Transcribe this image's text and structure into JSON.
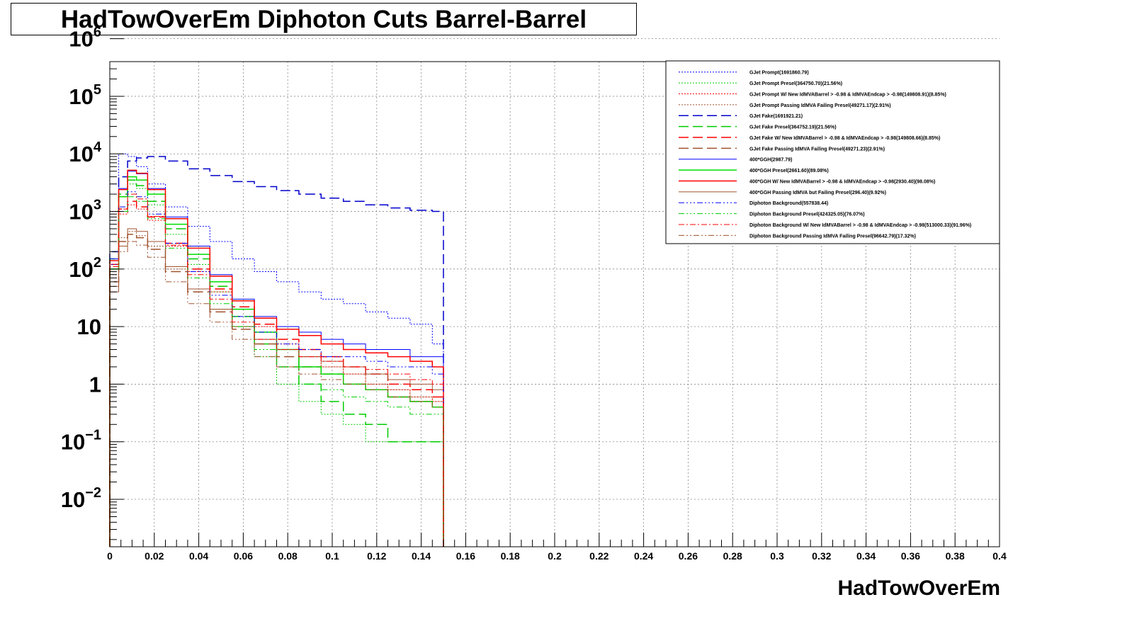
{
  "chart_data": {
    "type": "line",
    "title": "HadTowOverEm Diphoton Cuts Barrel-Barrel",
    "xlabel": "HadTowOverEm",
    "ylabel": "",
    "xlim": [
      0,
      0.4
    ],
    "ylim": [
      0.0015,
      400000
    ],
    "yscale": "log",
    "grid": true,
    "legend_position": "top-right",
    "x_ticks": [
      "0",
      "0.02",
      "0.04",
      "0.06",
      "0.08",
      "0.1",
      "0.12",
      "0.14",
      "0.16",
      "0.18",
      "0.2",
      "0.22",
      "0.24",
      "0.26",
      "0.28",
      "0.3",
      "0.32",
      "0.34",
      "0.36",
      "0.38",
      "0.4"
    ],
    "y_ticks": [
      {
        "value": 0.01,
        "base": "10",
        "exp": "−2"
      },
      {
        "value": 0.1,
        "base": "10",
        "exp": "−1"
      },
      {
        "value": 1,
        "base": "1",
        "exp": ""
      },
      {
        "value": 10,
        "base": "10",
        "exp": ""
      },
      {
        "value": 100,
        "base": "10",
        "exp": "2"
      },
      {
        "value": 1000,
        "base": "10",
        "exp": "3"
      },
      {
        "value": 10000,
        "base": "10",
        "exp": "4"
      },
      {
        "value": 100000,
        "base": "10",
        "exp": "5"
      },
      {
        "value": 1000000,
        "base": "10",
        "exp": "6"
      }
    ],
    "x": [
      0.002,
      0.006,
      0.01,
      0.014,
      0.02,
      0.03,
      0.04,
      0.05,
      0.06,
      0.07,
      0.08,
      0.09,
      0.1,
      0.11,
      0.12,
      0.13,
      0.14,
      0.15
    ],
    "series": [
      {
        "name": "GJet Prompt(1691860.79)",
        "color": "#0000ff",
        "dash": "2,2",
        "width": 1,
        "values": [
          3000,
          10000,
          9000,
          6000,
          3000,
          1200,
          550,
          300,
          150,
          90,
          60,
          40,
          30,
          25,
          18,
          14,
          11,
          5
        ]
      },
      {
        "name": "GJet Prompt Presel(364750.70)(21.56%)",
        "color": "#00cc00",
        "dash": "2,2",
        "width": 1,
        "values": [
          200,
          1800,
          3000,
          2500,
          1300,
          400,
          120,
          40,
          10,
          3,
          1,
          0.5,
          0.3,
          0.2,
          0.1,
          0.1,
          0.1,
          0.1
        ]
      },
      {
        "name": "GJet Prompt W/ New IdMVABarrel > -0.98 & IdMVAEndcap > -0.98(149808.91)(8.85%)",
        "color": "#ff0000",
        "dash": "2,2",
        "width": 1,
        "values": [
          150,
          900,
          1300,
          1100,
          700,
          250,
          90,
          40,
          20,
          10,
          5,
          3,
          2,
          1.5,
          1,
          0.8,
          0.6,
          0.5
        ]
      },
      {
        "name": "GJet Prompt Passing IdMVA Failing Presel(49271.17)(2.91%)",
        "color": "#a0522d",
        "dash": "2,2",
        "width": 1,
        "values": [
          80,
          350,
          450,
          380,
          250,
          100,
          45,
          20,
          10,
          6,
          4,
          3,
          2,
          1.5,
          1,
          0.8,
          0.6,
          0.5
        ]
      },
      {
        "name": "GJet Fake(1691921.21)",
        "color": "#0000cc",
        "dash": "14,6",
        "width": 1.5,
        "values": [
          200,
          4000,
          7500,
          8500,
          9000,
          7500,
          5500,
          4200,
          3300,
          2700,
          2300,
          2000,
          1700,
          1500,
          1300,
          1150,
          1050,
          1000
        ]
      },
      {
        "name": "GJet Fake Presel(364752.19)(21.56%)",
        "color": "#00cc00",
        "dash": "14,6",
        "width": 1.5,
        "values": [
          150,
          2000,
          3500,
          2800,
          1500,
          500,
          150,
          50,
          15,
          5,
          2,
          1,
          0.5,
          0.3,
          0.2,
          0.1,
          0.1,
          0.1
        ]
      },
      {
        "name": "GJet Fake W/ New IdMVABarrel > -0.98 & IdMVAEndcap > -0.98(149808.66)(8.85%)",
        "color": "#ff0000",
        "dash": "14,6",
        "width": 1.5,
        "values": [
          120,
          1100,
          1500,
          1200,
          800,
          280,
          100,
          45,
          22,
          11,
          6,
          4,
          3,
          2,
          1.5,
          1,
          0.8,
          0.6
        ]
      },
      {
        "name": "GJet Fake Passing IdMVA Failing Presel(49271.23)(2.91%)",
        "color": "#a0522d",
        "dash": "14,6",
        "width": 1.5,
        "values": [
          60,
          300,
          400,
          350,
          220,
          90,
          40,
          18,
          9,
          5,
          3,
          2,
          1.5,
          1,
          0.8,
          0.6,
          0.5,
          0.4
        ]
      },
      {
        "name": "400*GGH(2987.79)",
        "color": "#0000ff",
        "dash": "",
        "width": 1,
        "values": [
          150,
          2500,
          5000,
          4500,
          2500,
          800,
          250,
          80,
          30,
          15,
          10,
          8,
          6,
          5,
          4,
          4,
          3,
          3
        ]
      },
      {
        "name": "400*GGH Presel(2661.60)(89.08%)",
        "color": "#00dd00",
        "dash": "",
        "width": 1.5,
        "values": [
          100,
          1800,
          4000,
          3500,
          2000,
          600,
          180,
          60,
          20,
          8,
          4,
          2,
          1.5,
          1,
          0.8,
          0.6,
          0.5,
          0.4
        ]
      },
      {
        "name": "400*GGH W/ New IdMVABarrel > -0.98 & IdMVAEndcap > -0.98(2930.40)(98.08%)",
        "color": "#ff0000",
        "dash": "",
        "width": 1.5,
        "values": [
          140,
          2400,
          5200,
          4600,
          2400,
          750,
          230,
          75,
          28,
          14,
          9,
          7,
          5,
          4,
          3.5,
          3,
          2.5,
          2
        ]
      },
      {
        "name": "400*GGH Passing IdMVA but Failing Presel(296.40)(9.92%)",
        "color": "#a0522d",
        "dash": "",
        "width": 1,
        "values": [
          40,
          250,
          500,
          450,
          300,
          110,
          45,
          20,
          10,
          6,
          4,
          3,
          2.5,
          2,
          1.5,
          1.2,
          1,
          0.8
        ]
      },
      {
        "name": "Diphoton Background(557838.44)",
        "color": "#0000ff",
        "dash": "8,3,2,3,2,3,2,3",
        "width": 1,
        "values": [
          120,
          1200,
          2200,
          1800,
          900,
          280,
          90,
          35,
          15,
          8,
          5,
          4,
          3,
          3,
          2.5,
          2,
          2,
          1.5
        ]
      },
      {
        "name": "Diphoton Background Presel(424325.05)(76.07%)",
        "color": "#00cc00",
        "dash": "8,3,2,3,2,3,2,3",
        "width": 1,
        "values": [
          100,
          1000,
          1800,
          1500,
          750,
          230,
          70,
          25,
          10,
          4,
          2,
          1,
          0.8,
          0.6,
          0.5,
          0.4,
          0.3,
          0.3
        ]
      },
      {
        "name": "Diphoton Background W/ New IdMVABarrel > -0.98 & IdMVAEndcap > -0.98(513000.33)(91.96%)",
        "color": "#ff0000",
        "dash": "8,3,2,3",
        "width": 1,
        "values": [
          110,
          1100,
          2000,
          1650,
          820,
          260,
          80,
          30,
          12,
          6,
          4,
          3,
          2.5,
          2,
          1.8,
          1.5,
          1.2,
          1
        ]
      },
      {
        "name": "Diphoton Background Passing IdMVA Failing Presel(96642.79)(17.32%)",
        "color": "#a0522d",
        "dash": "8,3,2,3,2,3",
        "width": 1,
        "values": [
          50,
          200,
          300,
          260,
          160,
          60,
          25,
          12,
          6,
          3,
          2,
          1.5,
          1.2,
          1,
          0.8,
          0.6,
          0.5,
          0.4
        ]
      }
    ]
  }
}
